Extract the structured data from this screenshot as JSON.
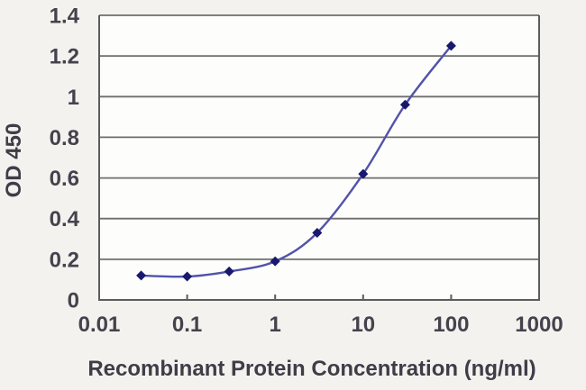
{
  "page": {
    "background": "#f4f2ee"
  },
  "chart_data": {
    "type": "line",
    "title": "",
    "xlabel": "Recombinant Protein Concentration (ng/ml)",
    "ylabel": "OD 450",
    "x_scale": "log",
    "xlim": [
      0.01,
      1000
    ],
    "ylim": [
      0,
      1.4
    ],
    "x": [
      0.03,
      0.1,
      0.3,
      1,
      3,
      10,
      30,
      100
    ],
    "values": [
      0.12,
      0.115,
      0.14,
      0.19,
      0.33,
      0.62,
      0.96,
      1.25
    ],
    "x_ticks": [
      "0.01",
      "0.1",
      "1",
      "10",
      "100",
      "1000"
    ],
    "y_ticks": [
      "0",
      "0.2",
      "0.4",
      "0.6",
      "0.8",
      "1",
      "1.2",
      "1.4"
    ],
    "grid": "horizontal",
    "legend": "none",
    "marker": "diamond",
    "colors": {
      "line": "#5252aa",
      "marker": "#18186e",
      "grid": "#6e6e6e",
      "axis": "#5c5c5c",
      "tick_text": "#46424d",
      "title_text": "#403c48",
      "plot_bg": "#fdfdfb",
      "page_bg": "#f4f2ee"
    }
  }
}
